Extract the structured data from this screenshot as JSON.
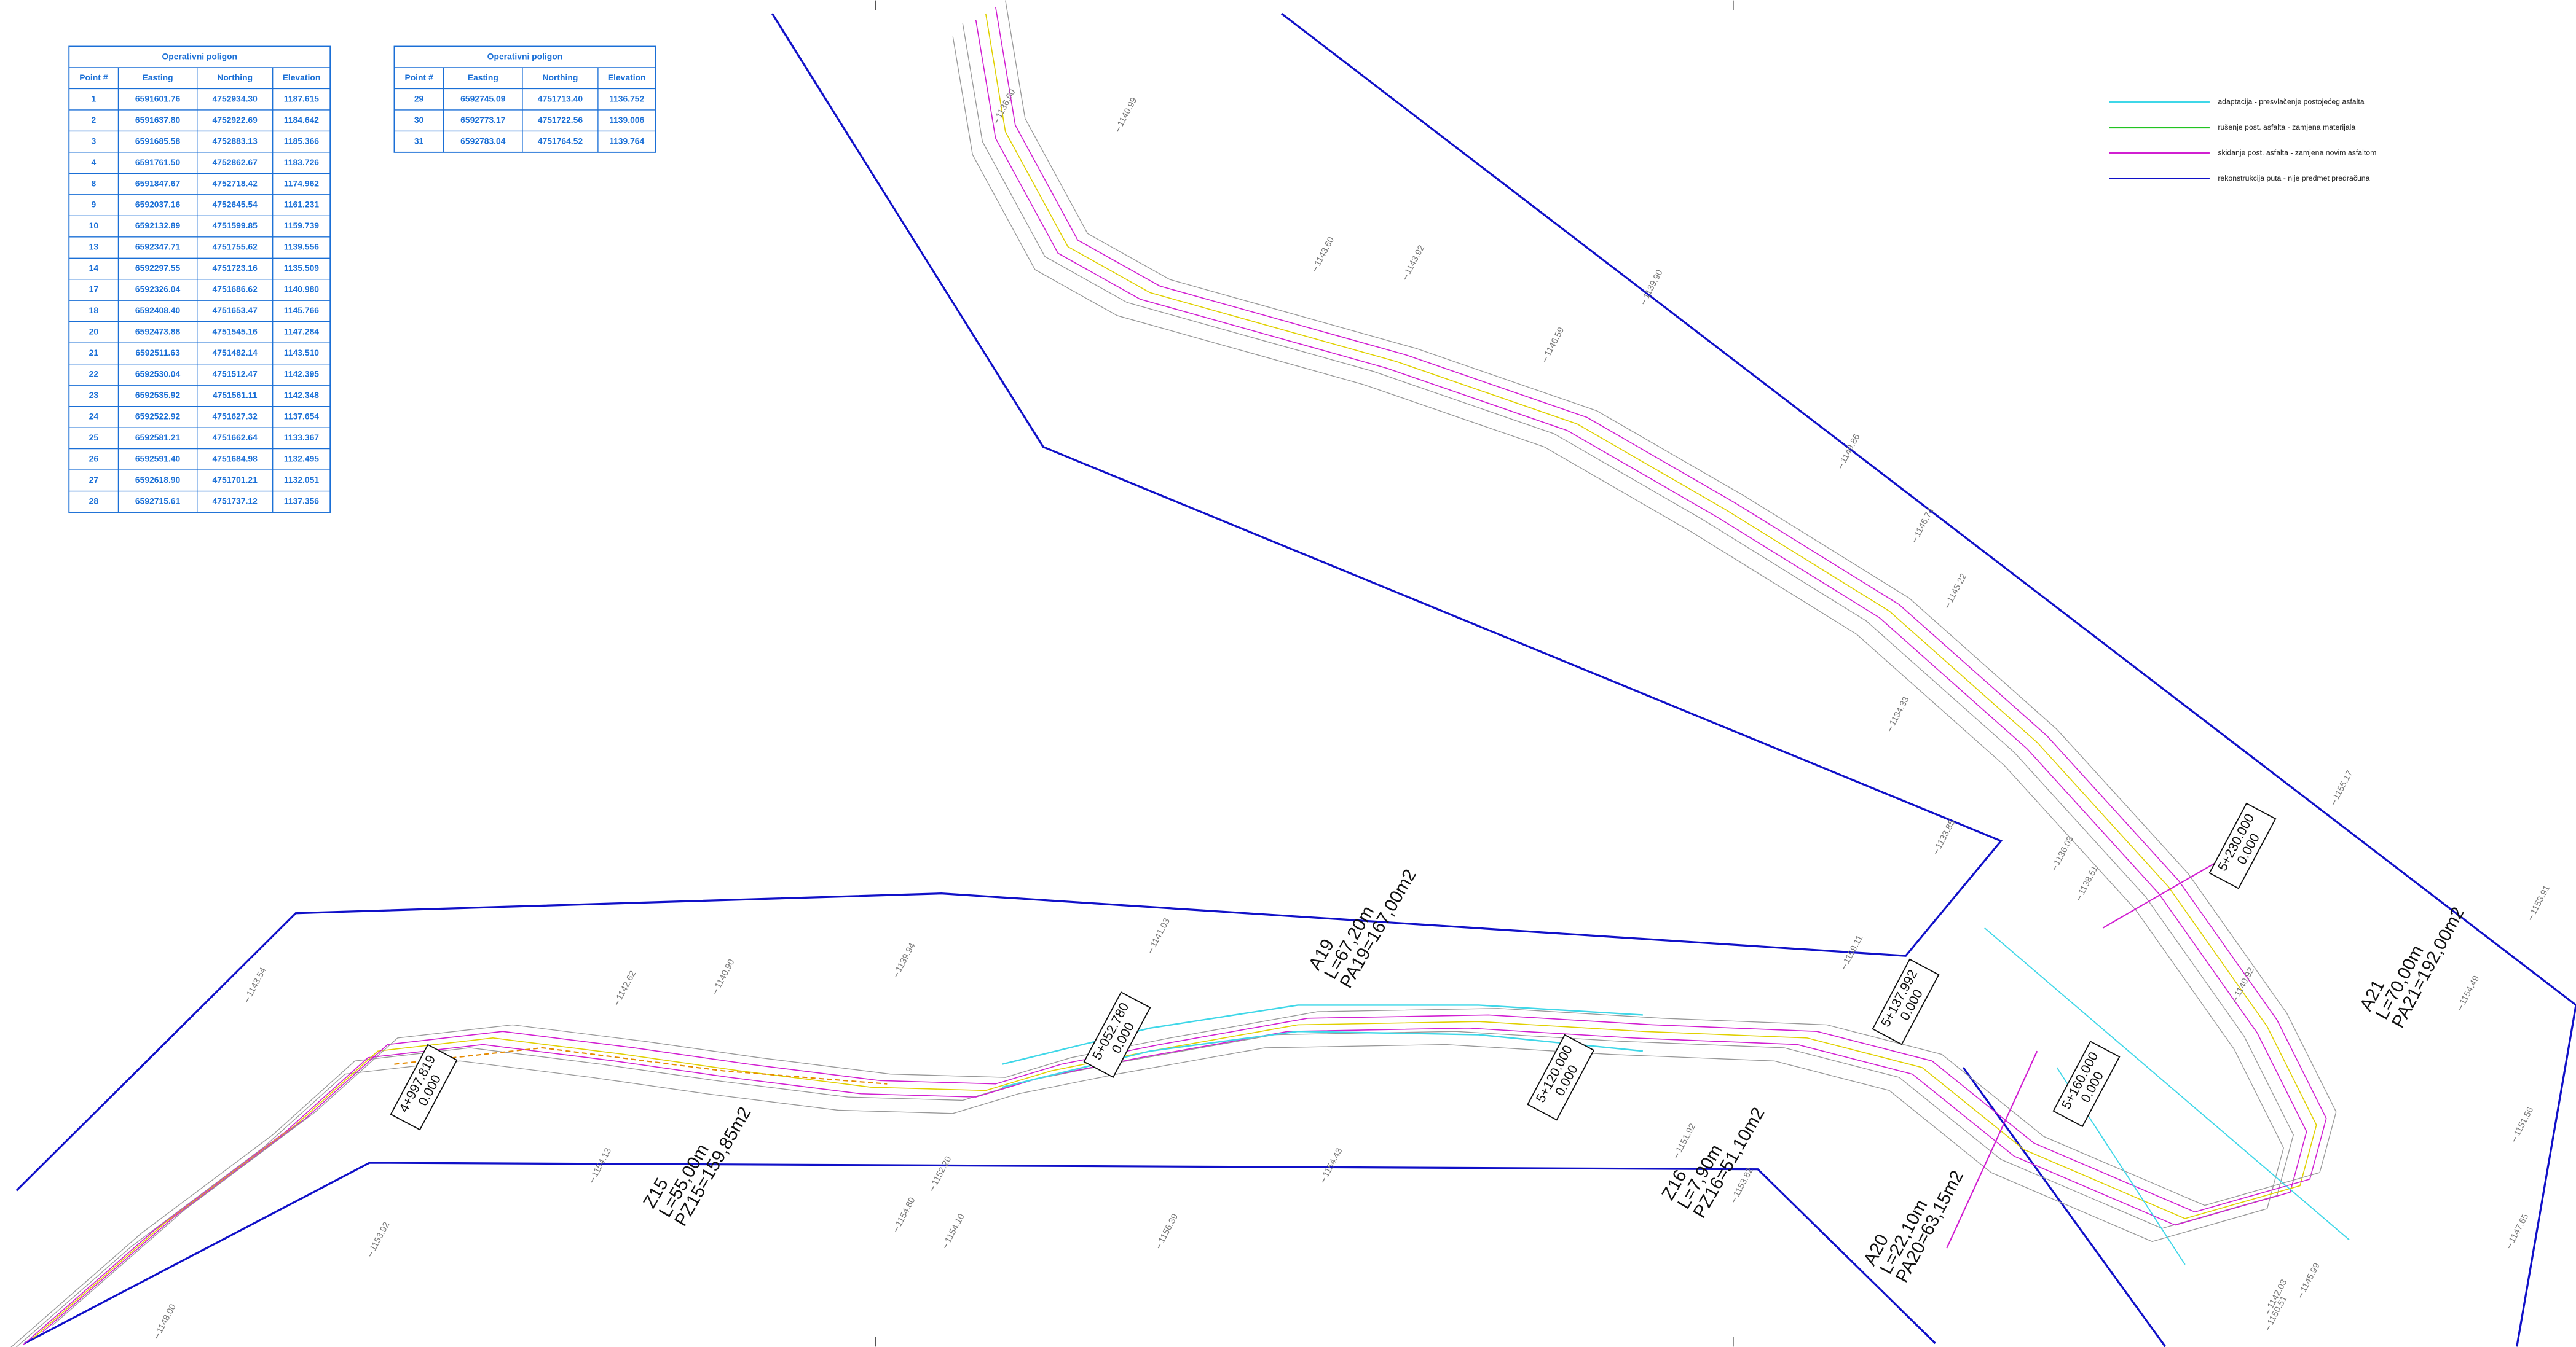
{
  "tables": [
    {
      "title": "Operativni poligon",
      "columns": [
        "Point #",
        "Easting",
        "Northing",
        "Elevation"
      ],
      "rows": [
        [
          "1",
          "6591601.76",
          "4752934.30",
          "1187.615"
        ],
        [
          "2",
          "6591637.80",
          "4752922.69",
          "1184.642"
        ],
        [
          "3",
          "6591685.58",
          "4752883.13",
          "1185.366"
        ],
        [
          "4",
          "6591761.50",
          "4752862.67",
          "1183.726"
        ],
        [
          "8",
          "6591847.67",
          "4752718.42",
          "1174.962"
        ],
        [
          "9",
          "6592037.16",
          "4752645.54",
          "1161.231"
        ],
        [
          "10",
          "6592132.89",
          "4751599.85",
          "1159.739"
        ],
        [
          "13",
          "6592347.71",
          "4751755.62",
          "1139.556"
        ],
        [
          "14",
          "6592297.55",
          "4751723.16",
          "1135.509"
        ],
        [
          "17",
          "6592326.04",
          "4751686.62",
          "1140.980"
        ],
        [
          "18",
          "6592408.40",
          "4751653.47",
          "1145.766"
        ],
        [
          "20",
          "6592473.88",
          "4751545.16",
          "1147.284"
        ],
        [
          "21",
          "6592511.63",
          "4751482.14",
          "1143.510"
        ],
        [
          "22",
          "6592530.04",
          "4751512.47",
          "1142.395"
        ],
        [
          "23",
          "6592535.92",
          "4751561.11",
          "1142.348"
        ],
        [
          "24",
          "6592522.92",
          "4751627.32",
          "1137.654"
        ],
        [
          "25",
          "6592581.21",
          "4751662.64",
          "1133.367"
        ],
        [
          "26",
          "6592591.40",
          "4751684.98",
          "1132.495"
        ],
        [
          "27",
          "6592618.90",
          "4751701.21",
          "1132.051"
        ],
        [
          "28",
          "6592715.61",
          "4751737.12",
          "1137.356"
        ]
      ]
    },
    {
      "title": "Operativni poligon",
      "columns": [
        "Point #",
        "Easting",
        "Northing",
        "Elevation"
      ],
      "rows": [
        [
          "29",
          "6592745.09",
          "4751713.40",
          "1136.752"
        ],
        [
          "30",
          "6592773.17",
          "4751722.56",
          "1139.006"
        ],
        [
          "31",
          "6592783.04",
          "4751764.52",
          "1139.764"
        ]
      ]
    }
  ],
  "legend": [
    {
      "label": "adaptacija - presvlačenje postojećeg asfalta",
      "color": "#3fd7e8"
    },
    {
      "label": "rušenje post. asfalta - zamjena materijala",
      "color": "#22c322"
    },
    {
      "label": "skidanje post. asfalta - zamjena novim asfaltom",
      "color": "#d11fd1"
    },
    {
      "label": "rekonstrukcija puta - nije predmet predračuna",
      "color": "#1010c8"
    }
  ],
  "annotations": [
    {
      "lines": [
        "A19",
        "L=67,20m",
        "PA19=167,00m2"
      ]
    },
    {
      "lines": [
        "Z15",
        "L=55,00m",
        "PZ15=159,85m2"
      ]
    },
    {
      "lines": [
        "Z16",
        "L=7,90m",
        "PZ16=51,10m2"
      ]
    },
    {
      "lines": [
        "A20",
        "L=22,10m",
        "PA20=63,15m2"
      ]
    },
    {
      "lines": [
        "A21",
        "L=70,00m",
        "PA21=192,00m2"
      ]
    }
  ],
  "stations": [
    {
      "lines": [
        "4+997.819",
        "0.000"
      ]
    },
    {
      "lines": [
        "5+052.780",
        "0.000"
      ]
    },
    {
      "lines": [
        "5+120.000",
        "0.000"
      ]
    },
    {
      "lines": [
        "5+137.992",
        "0.000"
      ]
    },
    {
      "lines": [
        "5+160.000",
        "0.000"
      ]
    },
    {
      "lines": [
        "5+230.000",
        "0.000"
      ]
    }
  ],
  "elevations": [
    "1136.60",
    "1140.99",
    "1143.60",
    "1143.92",
    "1146.59",
    "1149.86",
    "1146.74",
    "1145.22",
    "1134.33",
    "1155.17",
    "1153.91",
    "1154.49",
    "1151.56",
    "1147.65",
    "1145.99",
    "1142.03",
    "1148.00",
    "1153.92",
    "1154.80",
    "1154.10",
    "1156.39",
    "1154.43",
    "1153.82",
    "1151.92",
    "1140.90",
    "1139.94",
    "1141.03",
    "1142.62",
    "1139.90",
    "1143.54",
    "1133.85",
    "1159.11",
    "1136.03",
    "1138.51",
    "1140.92",
    "1150.51",
    "1154.13",
    "1152.20"
  ]
}
